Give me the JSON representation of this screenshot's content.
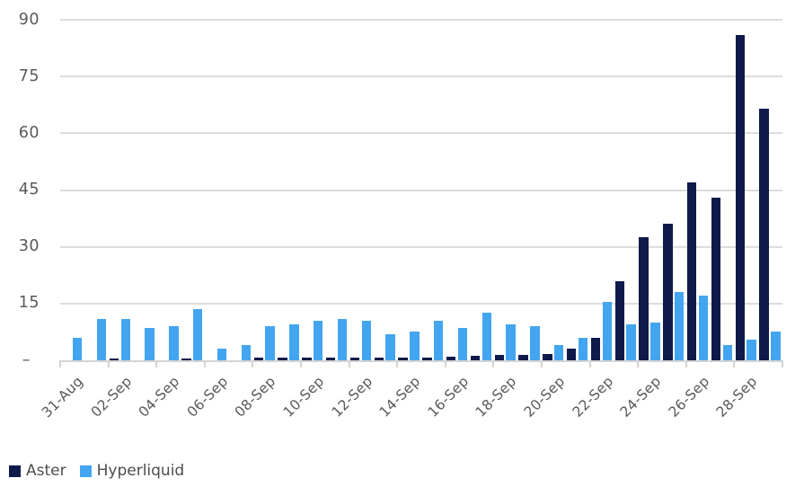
{
  "chart_data": {
    "type": "bar",
    "title": "",
    "xlabel": "",
    "ylabel": "",
    "ylim": [
      0,
      90
    ],
    "grid": "horizontal",
    "legend_position": "bottom-left",
    "categories": [
      "31-Aug",
      "01-Sep",
      "02-Sep",
      "03-Sep",
      "04-Sep",
      "05-Sep",
      "06-Sep",
      "07-Sep",
      "08-Sep",
      "09-Sep",
      "10-Sep",
      "11-Sep",
      "12-Sep",
      "13-Sep",
      "14-Sep",
      "15-Sep",
      "16-Sep",
      "17-Sep",
      "18-Sep",
      "19-Sep",
      "20-Sep",
      "21-Sep",
      "22-Sep",
      "23-Sep",
      "24-Sep",
      "25-Sep",
      "26-Sep",
      "27-Sep",
      "28-Sep",
      "29-Sep"
    ],
    "series": [
      {
        "name": "Aster",
        "color": "#0f1a4b",
        "values": [
          0,
          0,
          0.5,
          0,
          0,
          0.5,
          0,
          0,
          0.6,
          0.6,
          0.8,
          0.8,
          0.8,
          0.7,
          0.7,
          0.7,
          1,
          1.3,
          1.4,
          1.4,
          1.6,
          3,
          6,
          21,
          32.5,
          36,
          47,
          43,
          86,
          66.5
        ]
      },
      {
        "name": "Hyperliquid",
        "color": "#43a5f0",
        "values": [
          6,
          11,
          11,
          8.5,
          9,
          13.5,
          3,
          4,
          9,
          9.5,
          10.5,
          11,
          10.5,
          7,
          7.5,
          10.5,
          8.5,
          12.5,
          9.5,
          9,
          4,
          6,
          15.5,
          9.5,
          10,
          18,
          17,
          4,
          5.5,
          7.5
        ]
      }
    ],
    "y_ticks": [
      {
        "value": 90,
        "label": "90"
      },
      {
        "value": 75,
        "label": "75"
      },
      {
        "value": 60,
        "label": "60"
      },
      {
        "value": 45,
        "label": "45"
      },
      {
        "value": 30,
        "label": "30"
      },
      {
        "value": 15,
        "label": "15"
      },
      {
        "value": 0,
        "label": "–"
      }
    ],
    "x_tick_labels": [
      "31-Aug",
      "02-Sep",
      "04-Sep",
      "06-Sep",
      "08-Sep",
      "10-Sep",
      "12-Sep",
      "14-Sep",
      "16-Sep",
      "18-Sep",
      "20-Sep",
      "22-Sep",
      "24-Sep",
      "26-Sep",
      "28-Sep"
    ],
    "colors": {
      "grid": "#dcdcdc",
      "axis_line": "#d4d4d4",
      "axis_text": "#595959",
      "legend_text": "#4d4d4d"
    }
  }
}
